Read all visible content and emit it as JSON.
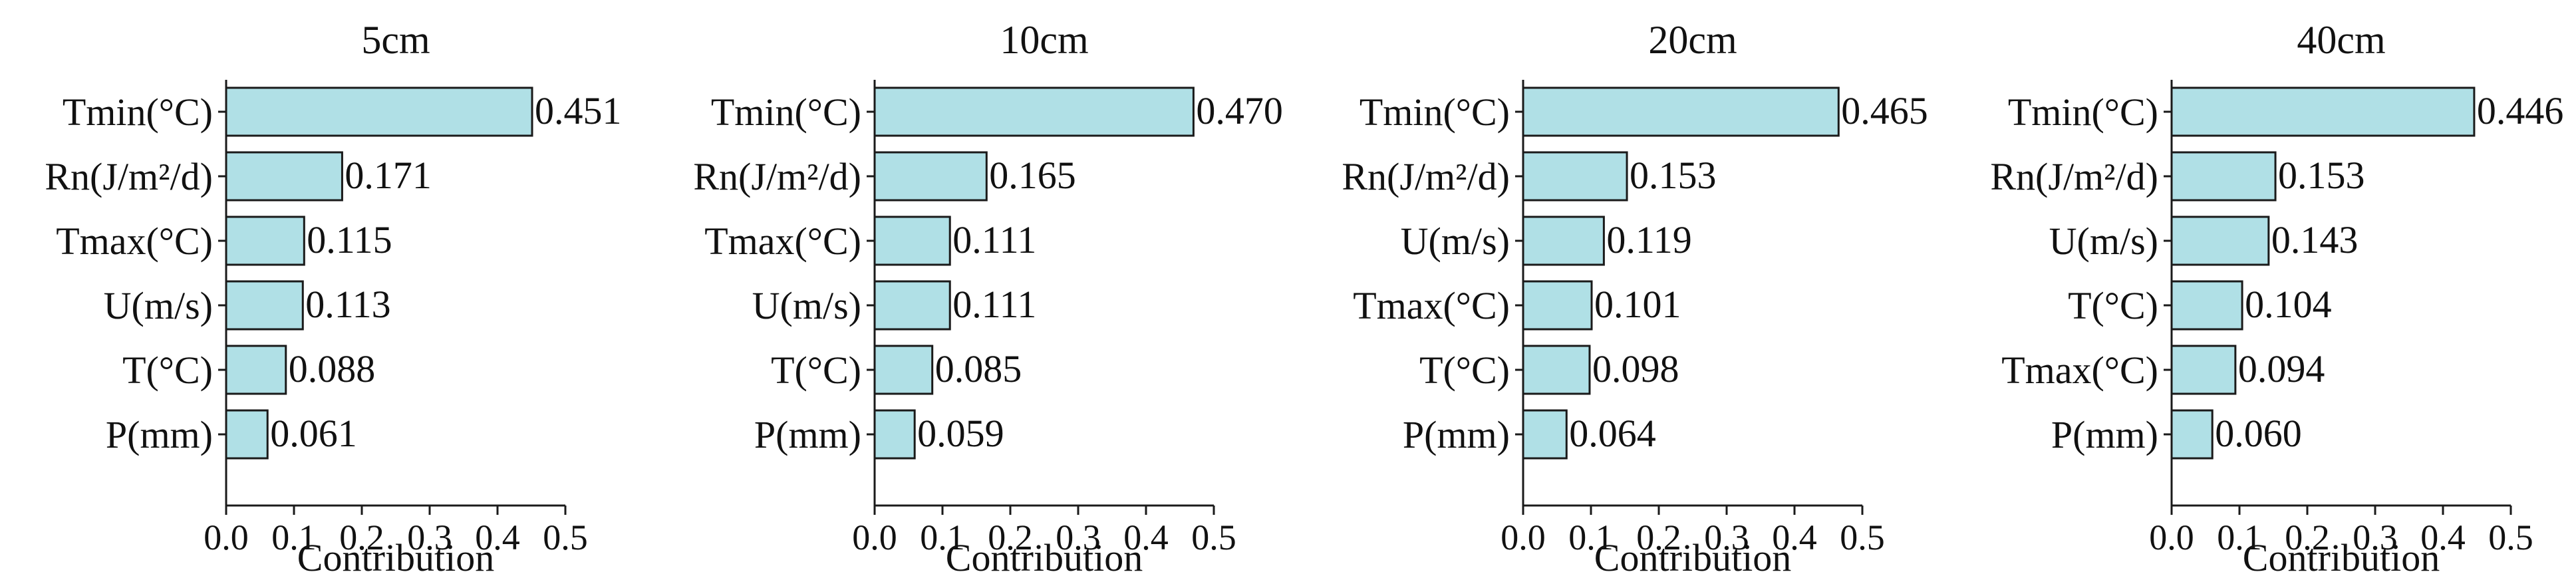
{
  "chart_data": [
    {
      "type": "bar",
      "orientation": "horizontal",
      "title": "5cm",
      "categories": [
        "Tmin(°C)",
        "Rn(J/m²/d)",
        "Tmax(°C)",
        "U(m/s)",
        "T(°C)",
        "P(mm)"
      ],
      "values": [
        0.451,
        0.171,
        0.115,
        0.113,
        0.088,
        0.061
      ],
      "value_labels": [
        "0.451",
        "0.171",
        "0.115",
        "0.113",
        "0.088",
        "0.061"
      ],
      "xlabel": "Contribution",
      "ylabel": "",
      "xlim": [
        0.0,
        0.5
      ],
      "xticks": [
        "0.0",
        "0.1",
        "0.2",
        "0.3",
        "0.4",
        "0.5"
      ],
      "grid": false
    },
    {
      "type": "bar",
      "orientation": "horizontal",
      "title": "10cm",
      "categories": [
        "Tmin(°C)",
        "Rn(J/m²/d)",
        "Tmax(°C)",
        "U(m/s)",
        "T(°C)",
        "P(mm)"
      ],
      "values": [
        0.47,
        0.165,
        0.111,
        0.111,
        0.085,
        0.059
      ],
      "value_labels": [
        "0.470",
        "0.165",
        "0.111",
        "0.111",
        "0.085",
        "0.059"
      ],
      "xlabel": "Contribution",
      "ylabel": "",
      "xlim": [
        0.0,
        0.5
      ],
      "xticks": [
        "0.0",
        "0.1",
        "0.2",
        "0.3",
        "0.4",
        "0.5"
      ],
      "grid": false
    },
    {
      "type": "bar",
      "orientation": "horizontal",
      "title": "20cm",
      "categories": [
        "Tmin(°C)",
        "Rn(J/m²/d)",
        "U(m/s)",
        "Tmax(°C)",
        "T(°C)",
        "P(mm)"
      ],
      "values": [
        0.465,
        0.153,
        0.119,
        0.101,
        0.098,
        0.064
      ],
      "value_labels": [
        "0.465",
        "0.153",
        "0.119",
        "0.101",
        "0.098",
        "0.064"
      ],
      "xlabel": "Contribution",
      "ylabel": "",
      "xlim": [
        0.0,
        0.5
      ],
      "xticks": [
        "0.0",
        "0.1",
        "0.2",
        "0.3",
        "0.4",
        "0.5"
      ],
      "grid": false
    },
    {
      "type": "bar",
      "orientation": "horizontal",
      "title": "40cm",
      "categories": [
        "Tmin(°C)",
        "Rn(J/m²/d)",
        "U(m/s)",
        "T(°C)",
        "Tmax(°C)",
        "P(mm)"
      ],
      "values": [
        0.446,
        0.153,
        0.143,
        0.104,
        0.094,
        0.06
      ],
      "value_labels": [
        "0.446",
        "0.153",
        "0.143",
        "0.104",
        "0.094",
        "0.060"
      ],
      "xlabel": "Contribution",
      "ylabel": "",
      "xlim": [
        0.0,
        0.5
      ],
      "xticks": [
        "0.0",
        "0.1",
        "0.2",
        "0.3",
        "0.4",
        "0.5"
      ],
      "grid": false
    }
  ],
  "colors": {
    "bar_fill": "#b0e0e6",
    "bar_edge": "#1a1a1a",
    "text": "#111111"
  }
}
